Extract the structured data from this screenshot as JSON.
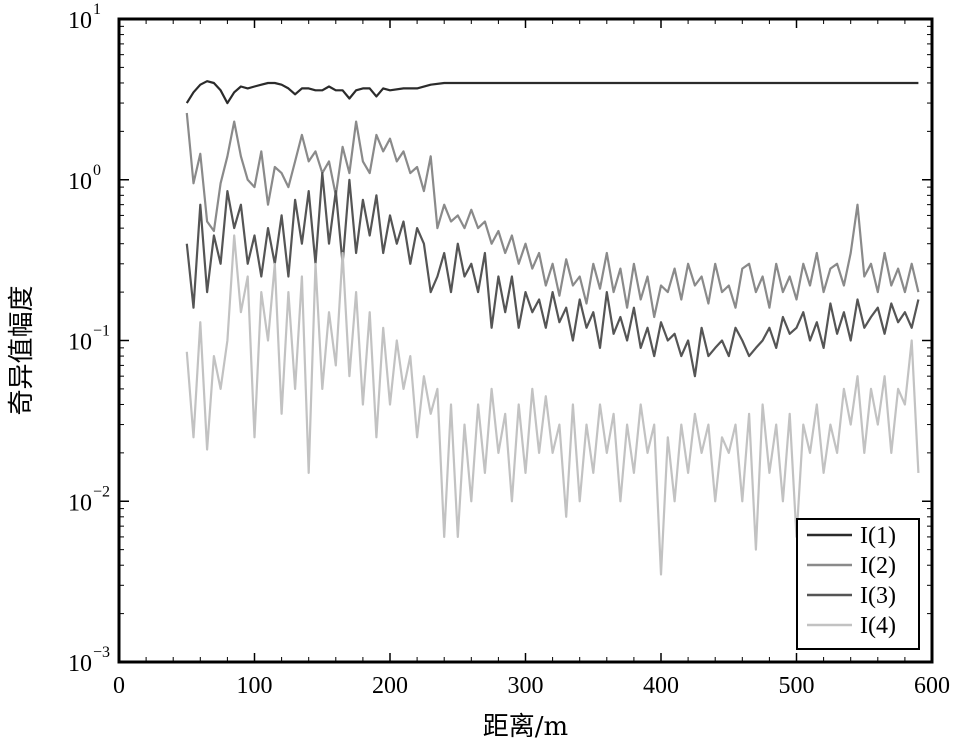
{
  "chart_data": {
    "type": "line",
    "title": "",
    "xlabel": "距离/m",
    "ylabel": "奇异值幅度",
    "xlim": [
      0,
      600
    ],
    "ylim": [
      0.001,
      10
    ],
    "yscale": "log",
    "grid": false,
    "legend_position": "bottom-right",
    "x_ticks": [
      0,
      100,
      200,
      300,
      400,
      500,
      600
    ],
    "x_tick_labels": [
      "0",
      "100",
      "200",
      "300",
      "400",
      "500",
      "600"
    ],
    "y_ticks": [
      0.001,
      0.01,
      0.1,
      1,
      10
    ],
    "y_tick_labels": [
      {
        "base": "10",
        "exp": "−3"
      },
      {
        "base": "10",
        "exp": "−2"
      },
      {
        "base": "10",
        "exp": "−1"
      },
      {
        "base": "10",
        "exp": "0"
      },
      {
        "base": "10",
        "exp": "1"
      }
    ],
    "series": [
      {
        "name": "I(1)",
        "color": "#2b2b2b",
        "x": [
          50,
          55,
          60,
          65,
          70,
          75,
          80,
          85,
          90,
          95,
          100,
          105,
          110,
          115,
          120,
          125,
          130,
          135,
          140,
          145,
          150,
          155,
          160,
          165,
          170,
          175,
          180,
          185,
          190,
          195,
          200,
          210,
          220,
          230,
          240,
          250,
          300,
          350,
          400,
          450,
          500,
          550,
          590
        ],
        "values": [
          3.0,
          3.5,
          3.9,
          4.1,
          4.0,
          3.6,
          3.0,
          3.5,
          3.8,
          3.7,
          3.8,
          3.9,
          4.0,
          4.0,
          3.9,
          3.7,
          3.4,
          3.7,
          3.7,
          3.6,
          3.6,
          3.8,
          3.6,
          3.6,
          3.2,
          3.6,
          3.7,
          3.7,
          3.3,
          3.7,
          3.6,
          3.7,
          3.7,
          3.9,
          4.0,
          4.0,
          4.0,
          4.0,
          4.0,
          4.0,
          4.0,
          4.0,
          4.0
        ]
      },
      {
        "name": "I(2)",
        "color": "#8a8a8a",
        "x": [
          50,
          55,
          60,
          65,
          70,
          75,
          80,
          85,
          90,
          95,
          100,
          105,
          110,
          115,
          120,
          125,
          130,
          135,
          140,
          145,
          150,
          155,
          160,
          165,
          170,
          175,
          180,
          185,
          190,
          195,
          200,
          205,
          210,
          215,
          220,
          225,
          230,
          235,
          240,
          245,
          250,
          255,
          260,
          265,
          270,
          275,
          280,
          285,
          290,
          295,
          300,
          305,
          310,
          315,
          320,
          325,
          330,
          335,
          340,
          345,
          350,
          355,
          360,
          365,
          370,
          375,
          380,
          385,
          390,
          395,
          400,
          405,
          410,
          415,
          420,
          425,
          430,
          435,
          440,
          445,
          450,
          455,
          460,
          465,
          470,
          475,
          480,
          485,
          490,
          495,
          500,
          505,
          510,
          515,
          520,
          525,
          530,
          535,
          540,
          545,
          550,
          555,
          560,
          565,
          570,
          575,
          580,
          585,
          590
        ],
        "values": [
          2.6,
          0.95,
          1.45,
          0.55,
          0.48,
          0.95,
          1.4,
          2.3,
          1.4,
          1.0,
          0.9,
          1.5,
          0.7,
          1.2,
          1.1,
          0.9,
          1.3,
          1.9,
          1.3,
          1.5,
          1.1,
          1.3,
          0.8,
          1.6,
          1.1,
          2.3,
          1.3,
          1.1,
          1.9,
          1.5,
          1.8,
          1.3,
          1.5,
          1.1,
          1.2,
          0.85,
          1.4,
          0.5,
          0.7,
          0.55,
          0.6,
          0.5,
          0.65,
          0.5,
          0.55,
          0.4,
          0.48,
          0.35,
          0.45,
          0.3,
          0.4,
          0.28,
          0.35,
          0.22,
          0.3,
          0.19,
          0.32,
          0.22,
          0.25,
          0.17,
          0.3,
          0.21,
          0.35,
          0.2,
          0.28,
          0.16,
          0.3,
          0.18,
          0.25,
          0.14,
          0.22,
          0.2,
          0.28,
          0.18,
          0.3,
          0.22,
          0.25,
          0.17,
          0.3,
          0.2,
          0.22,
          0.16,
          0.28,
          0.3,
          0.2,
          0.25,
          0.16,
          0.3,
          0.2,
          0.25,
          0.18,
          0.3,
          0.22,
          0.35,
          0.2,
          0.28,
          0.3,
          0.22,
          0.35,
          0.7,
          0.25,
          0.3,
          0.2,
          0.35,
          0.22,
          0.28,
          0.2,
          0.3,
          0.2
        ]
      },
      {
        "name": "I(3)",
        "color": "#555555",
        "x": [
          50,
          55,
          60,
          65,
          70,
          75,
          80,
          85,
          90,
          95,
          100,
          105,
          110,
          115,
          120,
          125,
          130,
          135,
          140,
          145,
          150,
          155,
          160,
          165,
          170,
          175,
          180,
          185,
          190,
          195,
          200,
          205,
          210,
          215,
          220,
          225,
          230,
          235,
          240,
          245,
          250,
          255,
          260,
          265,
          270,
          275,
          280,
          285,
          290,
          295,
          300,
          305,
          310,
          315,
          320,
          325,
          330,
          335,
          340,
          345,
          350,
          355,
          360,
          365,
          370,
          375,
          380,
          385,
          390,
          395,
          400,
          405,
          410,
          415,
          420,
          425,
          430,
          435,
          440,
          445,
          450,
          455,
          460,
          465,
          470,
          475,
          480,
          485,
          490,
          495,
          500,
          505,
          510,
          515,
          520,
          525,
          530,
          535,
          540,
          545,
          550,
          555,
          560,
          565,
          570,
          575,
          580,
          585,
          590
        ],
        "values": [
          0.4,
          0.16,
          0.7,
          0.2,
          0.45,
          0.3,
          0.85,
          0.5,
          0.7,
          0.3,
          0.45,
          0.25,
          0.5,
          0.3,
          0.6,
          0.25,
          0.75,
          0.4,
          0.85,
          0.3,
          1.1,
          0.4,
          0.85,
          0.3,
          1.0,
          0.35,
          0.75,
          0.45,
          0.8,
          0.35,
          0.6,
          0.4,
          0.55,
          0.3,
          0.5,
          0.4,
          0.2,
          0.25,
          0.35,
          0.2,
          0.4,
          0.25,
          0.3,
          0.2,
          0.35,
          0.12,
          0.25,
          0.15,
          0.25,
          0.12,
          0.2,
          0.15,
          0.18,
          0.12,
          0.2,
          0.13,
          0.16,
          0.1,
          0.18,
          0.12,
          0.15,
          0.09,
          0.2,
          0.11,
          0.14,
          0.1,
          0.16,
          0.09,
          0.12,
          0.08,
          0.13,
          0.1,
          0.11,
          0.08,
          0.1,
          0.06,
          0.12,
          0.08,
          0.09,
          0.1,
          0.08,
          0.12,
          0.1,
          0.08,
          0.09,
          0.1,
          0.12,
          0.09,
          0.14,
          0.11,
          0.12,
          0.15,
          0.1,
          0.13,
          0.09,
          0.17,
          0.11,
          0.15,
          0.1,
          0.18,
          0.12,
          0.14,
          0.16,
          0.11,
          0.17,
          0.13,
          0.15,
          0.12,
          0.18
        ]
      },
      {
        "name": "I(4)",
        "color": "#c2c2c2",
        "x": [
          50,
          55,
          60,
          65,
          70,
          75,
          80,
          85,
          90,
          95,
          100,
          105,
          110,
          115,
          120,
          125,
          130,
          135,
          140,
          145,
          150,
          155,
          160,
          165,
          170,
          175,
          180,
          185,
          190,
          195,
          200,
          205,
          210,
          215,
          220,
          225,
          230,
          235,
          240,
          245,
          250,
          255,
          260,
          265,
          270,
          275,
          280,
          285,
          290,
          295,
          300,
          305,
          310,
          315,
          320,
          325,
          330,
          335,
          340,
          345,
          350,
          355,
          360,
          365,
          370,
          375,
          380,
          385,
          390,
          395,
          400,
          405,
          410,
          415,
          420,
          425,
          430,
          435,
          440,
          445,
          450,
          455,
          460,
          465,
          470,
          475,
          480,
          485,
          490,
          495,
          500,
          505,
          510,
          515,
          520,
          525,
          530,
          535,
          540,
          545,
          550,
          555,
          560,
          565,
          570,
          575,
          580,
          585,
          590
        ],
        "values": [
          0.085,
          0.025,
          0.13,
          0.021,
          0.08,
          0.05,
          0.1,
          0.45,
          0.15,
          0.25,
          0.025,
          0.2,
          0.1,
          0.3,
          0.035,
          0.2,
          0.05,
          0.25,
          0.015,
          0.3,
          0.05,
          0.15,
          0.07,
          0.35,
          0.06,
          0.2,
          0.04,
          0.15,
          0.025,
          0.12,
          0.04,
          0.1,
          0.05,
          0.08,
          0.025,
          0.06,
          0.035,
          0.05,
          0.006,
          0.04,
          0.006,
          0.03,
          0.01,
          0.04,
          0.015,
          0.05,
          0.02,
          0.035,
          0.01,
          0.04,
          0.015,
          0.05,
          0.02,
          0.045,
          0.02,
          0.03,
          0.008,
          0.04,
          0.01,
          0.03,
          0.015,
          0.04,
          0.02,
          0.035,
          0.01,
          0.03,
          0.015,
          0.04,
          0.02,
          0.03,
          0.0035,
          0.025,
          0.01,
          0.03,
          0.015,
          0.035,
          0.02,
          0.03,
          0.01,
          0.025,
          0.02,
          0.03,
          0.01,
          0.035,
          0.005,
          0.04,
          0.015,
          0.03,
          0.01,
          0.035,
          0.006,
          0.03,
          0.02,
          0.04,
          0.015,
          0.03,
          0.02,
          0.05,
          0.03,
          0.06,
          0.02,
          0.05,
          0.03,
          0.06,
          0.02,
          0.05,
          0.04,
          0.1,
          0.015
        ]
      }
    ]
  }
}
